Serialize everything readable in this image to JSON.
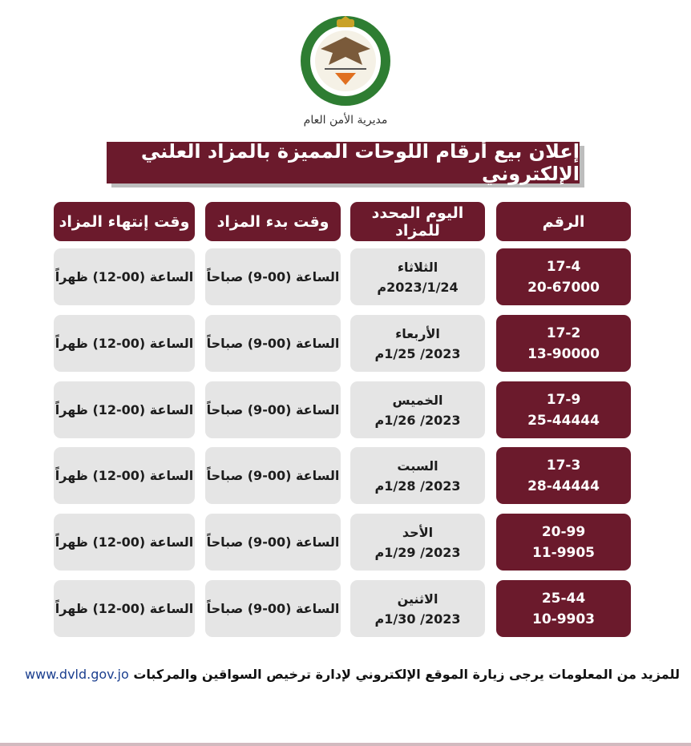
{
  "logo_text": "مديرية الأمن العام",
  "title": "إعلان بيع أرقام اللوحات المميزة بالمزاد العلني الإلكتروني",
  "headers": [
    "الرقم",
    "اليوم المحدد للمزاد",
    "وقت بدء المزاد",
    "وقت إنتهاء المزاد"
  ],
  "rows": [
    {
      "num1": "17-4",
      "num2": "20-67000",
      "day": "الثلاثاء",
      "date": "2023/1/24م",
      "start": "الساعة (00-9) صباحاً",
      "end": "الساعة (00-12) ظهراً"
    },
    {
      "num1": "17-2",
      "num2": "13-90000",
      "day": "الأربعاء",
      "date": "2023/ 1/25م",
      "start": "الساعة (00-9) صباحاً",
      "end": "الساعة (00-12) ظهراً"
    },
    {
      "num1": "17-9",
      "num2": "25-44444",
      "day": "الخميس",
      "date": "2023/ 1/26م",
      "start": "الساعة (00-9) صباحاً",
      "end": "الساعة (00-12) ظهراً"
    },
    {
      "num1": "17-3",
      "num2": "28-44444",
      "day": "السبت",
      "date": "2023/ 1/28م",
      "start": "الساعة (00-9) صباحاً",
      "end": "الساعة (00-12) ظهراً"
    },
    {
      "num1": "20-99",
      "num2": "11-9905",
      "day": "الأحد",
      "date": "2023/ 1/29م",
      "start": "الساعة (00-9) صباحاً",
      "end": "الساعة (00-12) ظهراً"
    },
    {
      "num1": "25-44",
      "num2": "10-9903",
      "day": "الاثنين",
      "date": "2023/ 1/30م",
      "start": "الساعة (00-9) صباحاً",
      "end": "الساعة (00-12) ظهراً"
    }
  ],
  "footer": {
    "text": "للمزيد من المعلومات يرجى زيارة الموقع الإلكتروني لإدارة ترخيص السواقين والمركبات",
    "url": "www.dvld.gov.jo"
  },
  "colors": {
    "maroon": "#6b1a2c",
    "cell_gray": "#e4e4e4",
    "link": "#1b3f8f"
  }
}
